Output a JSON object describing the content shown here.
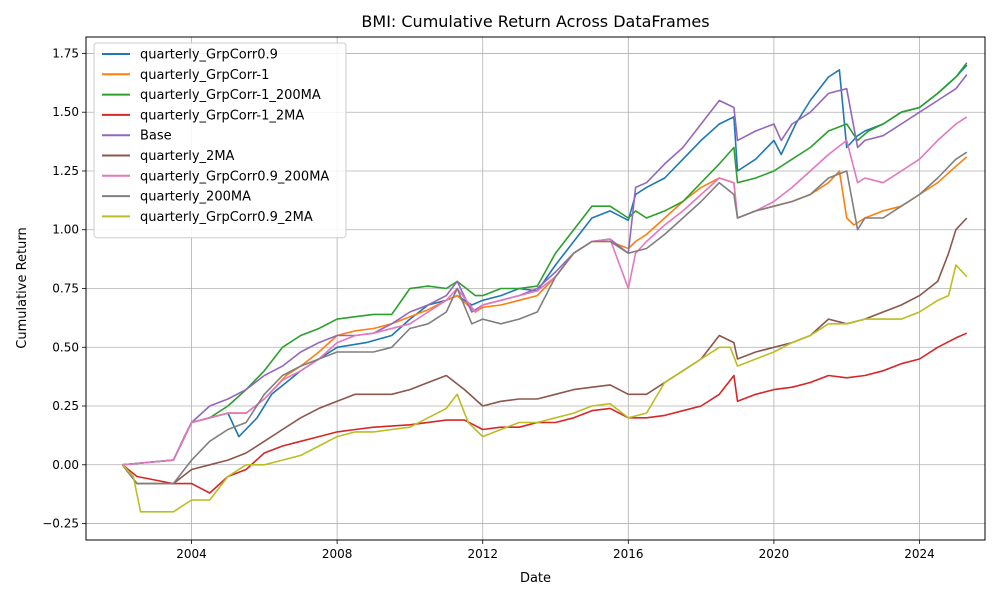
{
  "chart_data": {
    "type": "line",
    "title": "BMI: Cumulative Return Across DataFrames",
    "xlabel": "Date",
    "ylabel": "Cumulative Return",
    "xlim": [
      2001.1,
      2025.8
    ],
    "ylim": [
      -0.32,
      1.82
    ],
    "x_ticks": [
      2004,
      2008,
      2012,
      2016,
      2020,
      2024
    ],
    "y_ticks": [
      -0.25,
      0.0,
      0.25,
      0.5,
      0.75,
      1.0,
      1.25,
      1.5,
      1.75
    ],
    "y_tick_labels": [
      "−0.25",
      "0.00",
      "0.25",
      "0.50",
      "0.75",
      "1.00",
      "1.25",
      "1.50",
      "1.75"
    ],
    "grid": true,
    "legend_position": "upper-left",
    "series": [
      {
        "name": "quarterly_GrpCorr0.9",
        "color": "#1f77b4",
        "x": [
          2002.1,
          2003.5,
          2004.0,
          2004.5,
          2005.0,
          2005.3,
          2005.8,
          2006.2,
          2006.6,
          2007.0,
          2007.5,
          2008.0,
          2008.8,
          2009.5,
          2010.0,
          2010.5,
          2011.0,
          2011.3,
          2011.7,
          2012.0,
          2012.5,
          2013.0,
          2013.5,
          2014.0,
          2014.5,
          2015.0,
          2015.5,
          2016.0,
          2016.2,
          2016.5,
          2017.0,
          2017.5,
          2018.0,
          2018.5,
          2018.9,
          2019.0,
          2019.5,
          2020.0,
          2020.2,
          2020.6,
          2021.0,
          2021.5,
          2021.8,
          2022.0,
          2022.3,
          2022.5,
          2023.0,
          2023.5,
          2024.0,
          2024.5,
          2025.0,
          2025.3
        ],
        "y": [
          0.0,
          0.02,
          0.18,
          0.2,
          0.22,
          0.12,
          0.2,
          0.3,
          0.35,
          0.4,
          0.45,
          0.5,
          0.52,
          0.55,
          0.62,
          0.68,
          0.7,
          0.72,
          0.68,
          0.7,
          0.72,
          0.75,
          0.74,
          0.85,
          0.95,
          1.05,
          1.08,
          1.04,
          1.15,
          1.18,
          1.22,
          1.3,
          1.38,
          1.45,
          1.48,
          1.25,
          1.3,
          1.38,
          1.32,
          1.45,
          1.55,
          1.65,
          1.68,
          1.35,
          1.4,
          1.42,
          1.45,
          1.5,
          1.52,
          1.58,
          1.65,
          1.7
        ]
      },
      {
        "name": "quarterly_GrpCorr-1",
        "color": "#ff7f0e",
        "x": [
          2002.1,
          2003.5,
          2004.0,
          2004.5,
          2005.0,
          2005.5,
          2006.0,
          2006.6,
          2007.0,
          2007.5,
          2008.0,
          2008.5,
          2009.0,
          2009.5,
          2010.0,
          2010.5,
          2011.0,
          2011.3,
          2011.8,
          2012.0,
          2012.5,
          2013.0,
          2013.5,
          2014.0,
          2014.5,
          2015.0,
          2015.5,
          2016.0,
          2016.2,
          2016.5,
          2017.0,
          2017.5,
          2018.0,
          2018.5,
          2018.9,
          2019.0,
          2019.5,
          2020.0,
          2020.5,
          2021.0,
          2021.5,
          2021.8,
          2022.0,
          2022.2,
          2022.5,
          2023.0,
          2023.5,
          2024.0,
          2024.5,
          2025.0,
          2025.3
        ],
        "y": [
          0.0,
          0.02,
          0.18,
          0.2,
          0.22,
          0.22,
          0.28,
          0.38,
          0.42,
          0.48,
          0.55,
          0.57,
          0.58,
          0.6,
          0.63,
          0.66,
          0.7,
          0.72,
          0.65,
          0.67,
          0.68,
          0.7,
          0.72,
          0.8,
          0.9,
          0.95,
          0.95,
          0.92,
          0.95,
          0.98,
          1.05,
          1.12,
          1.18,
          1.22,
          1.2,
          1.05,
          1.08,
          1.1,
          1.12,
          1.15,
          1.2,
          1.25,
          1.05,
          1.02,
          1.05,
          1.08,
          1.1,
          1.15,
          1.2,
          1.27,
          1.31
        ]
      },
      {
        "name": "quarterly_GrpCorr-1_200MA",
        "color": "#2ca02c",
        "x": [
          2002.1,
          2003.5,
          2004.0,
          2004.5,
          2005.0,
          2005.5,
          2006.0,
          2006.5,
          2007.0,
          2007.5,
          2008.0,
          2008.5,
          2009.0,
          2009.5,
          2010.0,
          2010.5,
          2011.0,
          2011.3,
          2011.8,
          2012.0,
          2012.5,
          2013.0,
          2013.5,
          2014.0,
          2014.5,
          2015.0,
          2015.5,
          2016.0,
          2016.2,
          2016.5,
          2017.0,
          2017.5,
          2018.0,
          2018.5,
          2018.9,
          2019.0,
          2019.5,
          2020.0,
          2020.5,
          2021.0,
          2021.5,
          2022.0,
          2022.3,
          2022.6,
          2023.0,
          2023.5,
          2024.0,
          2024.5,
          2025.0,
          2025.3
        ],
        "y": [
          0.0,
          0.02,
          0.18,
          0.2,
          0.25,
          0.32,
          0.4,
          0.5,
          0.55,
          0.58,
          0.62,
          0.63,
          0.64,
          0.64,
          0.75,
          0.76,
          0.75,
          0.78,
          0.72,
          0.72,
          0.75,
          0.75,
          0.76,
          0.9,
          1.0,
          1.1,
          1.1,
          1.05,
          1.08,
          1.05,
          1.08,
          1.12,
          1.2,
          1.28,
          1.35,
          1.2,
          1.22,
          1.25,
          1.3,
          1.35,
          1.42,
          1.45,
          1.38,
          1.42,
          1.45,
          1.5,
          1.52,
          1.58,
          1.65,
          1.71
        ]
      },
      {
        "name": "quarterly_GrpCorr-1_2MA",
        "color": "#d62728",
        "x": [
          2002.1,
          2002.5,
          2003.5,
          2004.0,
          2004.5,
          2005.0,
          2005.5,
          2006.0,
          2006.5,
          2007.0,
          2007.5,
          2008.0,
          2008.5,
          2009.0,
          2010.0,
          2011.0,
          2011.5,
          2012.0,
          2012.5,
          2013.0,
          2013.5,
          2014.0,
          2014.5,
          2015.0,
          2015.5,
          2016.0,
          2016.5,
          2017.0,
          2017.5,
          2018.0,
          2018.5,
          2018.9,
          2019.0,
          2019.5,
          2020.0,
          2020.5,
          2021.0,
          2021.5,
          2022.0,
          2022.5,
          2023.0,
          2023.5,
          2024.0,
          2024.5,
          2025.0,
          2025.3
        ],
        "y": [
          0.0,
          -0.05,
          -0.08,
          -0.08,
          -0.12,
          -0.05,
          -0.02,
          0.05,
          0.08,
          0.1,
          0.12,
          0.14,
          0.15,
          0.16,
          0.17,
          0.19,
          0.19,
          0.15,
          0.16,
          0.16,
          0.18,
          0.18,
          0.2,
          0.23,
          0.24,
          0.2,
          0.2,
          0.21,
          0.23,
          0.25,
          0.3,
          0.38,
          0.27,
          0.3,
          0.32,
          0.33,
          0.35,
          0.38,
          0.37,
          0.38,
          0.4,
          0.43,
          0.45,
          0.5,
          0.54,
          0.56
        ]
      },
      {
        "name": "Base",
        "color": "#9467bd",
        "x": [
          2002.1,
          2003.5,
          2003.8,
          2004.0,
          2004.5,
          2005.0,
          2005.5,
          2006.0,
          2006.5,
          2007.0,
          2007.5,
          2008.0,
          2008.5,
          2009.0,
          2009.5,
          2010.0,
          2010.5,
          2011.0,
          2011.3,
          2011.7,
          2012.0,
          2012.5,
          2013.0,
          2013.5,
          2014.0,
          2014.5,
          2015.0,
          2015.5,
          2016.0,
          2016.2,
          2016.5,
          2017.0,
          2017.5,
          2018.0,
          2018.5,
          2018.9,
          2019.0,
          2019.5,
          2020.0,
          2020.2,
          2020.5,
          2021.0,
          2021.5,
          2022.0,
          2022.3,
          2022.5,
          2023.0,
          2023.5,
          2024.0,
          2024.5,
          2025.0,
          2025.3
        ],
        "y": [
          0.0,
          0.02,
          0.12,
          0.18,
          0.25,
          0.28,
          0.32,
          0.38,
          0.42,
          0.48,
          0.52,
          0.55,
          0.55,
          0.56,
          0.6,
          0.65,
          0.68,
          0.72,
          0.78,
          0.65,
          0.68,
          0.7,
          0.72,
          0.75,
          0.82,
          0.9,
          0.95,
          0.96,
          0.9,
          1.18,
          1.2,
          1.28,
          1.35,
          1.45,
          1.55,
          1.52,
          1.38,
          1.42,
          1.45,
          1.38,
          1.45,
          1.5,
          1.58,
          1.6,
          1.35,
          1.38,
          1.4,
          1.45,
          1.5,
          1.55,
          1.6,
          1.66
        ]
      },
      {
        "name": "quarterly_2MA",
        "color": "#8c564b",
        "x": [
          2002.1,
          2002.5,
          2003.5,
          2004.0,
          2004.5,
          2005.0,
          2005.5,
          2006.0,
          2006.5,
          2007.0,
          2007.5,
          2008.0,
          2008.5,
          2009.0,
          2009.5,
          2010.0,
          2010.5,
          2011.0,
          2011.5,
          2012.0,
          2012.5,
          2013.0,
          2013.5,
          2014.0,
          2014.5,
          2015.0,
          2015.5,
          2016.0,
          2016.5,
          2017.0,
          2017.5,
          2018.0,
          2018.5,
          2018.9,
          2019.0,
          2019.5,
          2020.0,
          2020.5,
          2021.0,
          2021.5,
          2022.0,
          2022.5,
          2023.0,
          2023.5,
          2024.0,
          2024.5,
          2024.8,
          2025.0,
          2025.3
        ],
        "y": [
          0.0,
          -0.08,
          -0.08,
          -0.02,
          0.0,
          0.02,
          0.05,
          0.1,
          0.15,
          0.2,
          0.24,
          0.27,
          0.3,
          0.3,
          0.3,
          0.32,
          0.35,
          0.38,
          0.32,
          0.25,
          0.27,
          0.28,
          0.28,
          0.3,
          0.32,
          0.33,
          0.34,
          0.3,
          0.3,
          0.35,
          0.4,
          0.45,
          0.55,
          0.52,
          0.45,
          0.48,
          0.5,
          0.52,
          0.55,
          0.62,
          0.6,
          0.62,
          0.65,
          0.68,
          0.72,
          0.78,
          0.9,
          1.0,
          1.05
        ]
      },
      {
        "name": "quarterly_GrpCorr0.9_200MA",
        "color": "#e377c2",
        "x": [
          2002.1,
          2003.5,
          2004.0,
          2004.5,
          2005.0,
          2005.5,
          2006.0,
          2006.5,
          2007.0,
          2007.5,
          2008.0,
          2008.5,
          2009.0,
          2010.0,
          2010.5,
          2011.0,
          2011.3,
          2011.8,
          2012.0,
          2012.5,
          2013.0,
          2013.5,
          2014.0,
          2014.5,
          2015.0,
          2015.5,
          2016.0,
          2016.2,
          2016.5,
          2017.0,
          2017.5,
          2018.0,
          2018.5,
          2018.9,
          2019.0,
          2019.5,
          2020.0,
          2020.5,
          2021.0,
          2021.5,
          2022.0,
          2022.3,
          2022.5,
          2023.0,
          2023.5,
          2024.0,
          2024.5,
          2025.0,
          2025.3
        ],
        "y": [
          0.0,
          0.02,
          0.18,
          0.2,
          0.22,
          0.22,
          0.28,
          0.36,
          0.4,
          0.45,
          0.52,
          0.55,
          0.56,
          0.6,
          0.65,
          0.7,
          0.75,
          0.65,
          0.68,
          0.7,
          0.72,
          0.74,
          0.8,
          0.9,
          0.95,
          0.96,
          0.75,
          0.9,
          0.95,
          1.02,
          1.08,
          1.15,
          1.22,
          1.2,
          1.05,
          1.08,
          1.12,
          1.18,
          1.25,
          1.32,
          1.38,
          1.2,
          1.22,
          1.2,
          1.25,
          1.3,
          1.38,
          1.45,
          1.48
        ]
      },
      {
        "name": "quarterly_200MA",
        "color": "#7f7f7f",
        "x": [
          2002.1,
          2002.5,
          2003.5,
          2004.0,
          2004.5,
          2005.0,
          2005.5,
          2006.0,
          2006.5,
          2007.0,
          2007.5,
          2008.0,
          2008.5,
          2009.0,
          2009.5,
          2010.0,
          2010.5,
          2011.0,
          2011.3,
          2011.7,
          2012.0,
          2012.5,
          2013.0,
          2013.5,
          2014.0,
          2014.5,
          2015.0,
          2015.5,
          2016.0,
          2016.5,
          2017.0,
          2017.5,
          2018.0,
          2018.5,
          2018.9,
          2019.0,
          2019.5,
          2020.0,
          2020.5,
          2021.0,
          2021.5,
          2022.0,
          2022.3,
          2022.5,
          2023.0,
          2023.5,
          2024.0,
          2024.5,
          2025.0,
          2025.3
        ],
        "y": [
          0.0,
          -0.08,
          -0.08,
          0.02,
          0.1,
          0.15,
          0.18,
          0.3,
          0.38,
          0.42,
          0.45,
          0.48,
          0.48,
          0.48,
          0.5,
          0.58,
          0.6,
          0.65,
          0.75,
          0.6,
          0.62,
          0.6,
          0.62,
          0.65,
          0.8,
          0.9,
          0.95,
          0.95,
          0.9,
          0.92,
          0.98,
          1.05,
          1.12,
          1.2,
          1.15,
          1.05,
          1.08,
          1.1,
          1.12,
          1.15,
          1.22,
          1.25,
          1.0,
          1.05,
          1.05,
          1.1,
          1.15,
          1.22,
          1.3,
          1.33
        ]
      },
      {
        "name": "quarterly_GrpCorr0.9_2MA",
        "color": "#bcbd22",
        "x": [
          2002.1,
          2002.4,
          2002.6,
          2003.5,
          2004.0,
          2004.5,
          2005.0,
          2005.5,
          2006.0,
          2006.5,
          2007.0,
          2007.5,
          2008.0,
          2008.5,
          2009.0,
          2009.5,
          2010.0,
          2010.5,
          2011.0,
          2011.3,
          2011.6,
          2012.0,
          2012.5,
          2013.0,
          2013.5,
          2014.0,
          2014.5,
          2015.0,
          2015.5,
          2016.0,
          2016.5,
          2017.0,
          2017.5,
          2018.0,
          2018.5,
          2018.8,
          2019.0,
          2019.5,
          2020.0,
          2020.5,
          2021.0,
          2021.5,
          2022.0,
          2022.5,
          2023.0,
          2023.5,
          2024.0,
          2024.5,
          2024.8,
          2025.0,
          2025.3
        ],
        "y": [
          0.0,
          -0.05,
          -0.2,
          -0.2,
          -0.15,
          -0.15,
          -0.05,
          0.0,
          0.0,
          0.02,
          0.04,
          0.08,
          0.12,
          0.14,
          0.14,
          0.15,
          0.16,
          0.2,
          0.24,
          0.3,
          0.18,
          0.12,
          0.15,
          0.18,
          0.18,
          0.2,
          0.22,
          0.25,
          0.26,
          0.2,
          0.22,
          0.35,
          0.4,
          0.45,
          0.5,
          0.5,
          0.42,
          0.45,
          0.48,
          0.52,
          0.55,
          0.6,
          0.6,
          0.62,
          0.62,
          0.62,
          0.65,
          0.7,
          0.72,
          0.85,
          0.8
        ]
      }
    ]
  }
}
